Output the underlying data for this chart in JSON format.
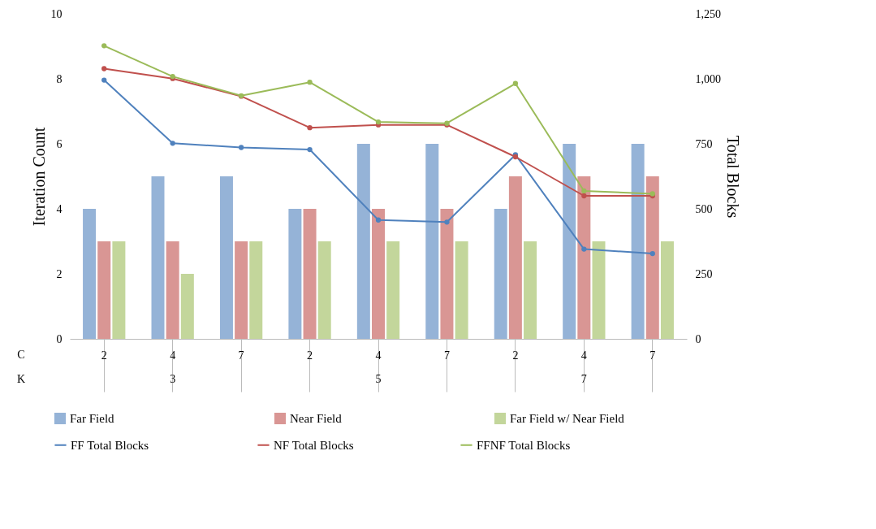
{
  "chart_data": {
    "type": "bar",
    "categories": [
      "2",
      "4",
      "7",
      "2",
      "4",
      "7",
      "2",
      "4",
      "7"
    ],
    "series": [
      {
        "name": "Far Field",
        "color": "#95b3d7",
        "values": [
          4,
          5,
          5,
          4,
          6,
          6,
          4,
          6,
          6
        ]
      },
      {
        "name": "Near Field",
        "color": "#d99694",
        "values": [
          3,
          3,
          3,
          4,
          4,
          4,
          5,
          5,
          5
        ]
      },
      {
        "name": "Far Field w/ Near Field",
        "color": "#c3d69b",
        "values": [
          3,
          2,
          3,
          3,
          3,
          3,
          3,
          3,
          3
        ]
      },
      {
        "name": "FF Total Blocks",
        "type": "line",
        "axis": "y2",
        "color": "#4f81bd",
        "values": [
          995,
          752,
          736,
          728,
          457,
          449,
          708,
          345,
          328
        ]
      },
      {
        "name": "NF Total Blocks",
        "type": "line",
        "axis": "y2",
        "color": "#c0504d",
        "values": [
          1039,
          1001,
          933,
          812,
          823,
          823,
          700,
          550,
          550
        ]
      },
      {
        "name": "FFNF Total Blocks",
        "type": "line",
        "axis": "y2",
        "color": "#9bbb59",
        "values": [
          1127,
          1009,
          935,
          987,
          834,
          829,
          982,
          569,
          558
        ]
      }
    ],
    "ylabel": "Iteration Count",
    "y2label": "Total Blocks",
    "ylim": [
      0,
      10
    ],
    "yticks": [
      0,
      2,
      4,
      6,
      8,
      10
    ],
    "y2lim": [
      0,
      1250
    ],
    "y2ticks": [
      0,
      250,
      500,
      750,
      {
        "value": 1000,
        "label": "1,000"
      },
      {
        "value": 1250,
        "label": "1,250"
      }
    ],
    "annotations": [
      "C",
      "K",
      "3",
      "5",
      "7"
    ],
    "legend": "bottom",
    "marker": "circle",
    "grid": false
  }
}
